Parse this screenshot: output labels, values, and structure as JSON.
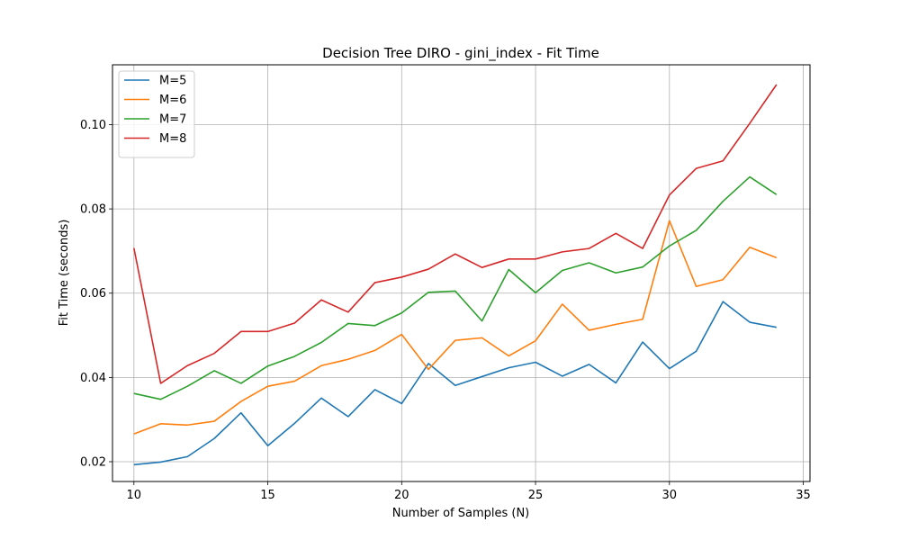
{
  "chart_data": {
    "type": "line",
    "title": "Decision Tree DIRO - gini_index - Fit Time",
    "xlabel": "Number of Samples (N)",
    "ylabel": "Fit Time (seconds)",
    "xlim": [
      9.2,
      35.25
    ],
    "ylim": [
      0.0153,
      0.1142
    ],
    "xticks": [
      10,
      15,
      20,
      25,
      30,
      35
    ],
    "yticks": [
      0.02,
      0.04,
      0.06,
      0.08,
      0.1
    ],
    "ytick_labels": [
      "0.02",
      "0.04",
      "0.06",
      "0.08",
      "0.10"
    ],
    "grid": true,
    "legend_position": "top-left",
    "x": [
      10,
      11,
      12,
      13,
      14,
      15,
      16,
      17,
      18,
      19,
      20,
      21,
      22,
      23,
      24,
      25,
      26,
      27,
      28,
      29,
      30,
      31,
      32,
      33,
      34
    ],
    "series": [
      {
        "name": "M=5",
        "color": "#1f77b4",
        "values": [
          0.0193,
          0.0199,
          0.0212,
          0.0255,
          0.0316,
          0.0238,
          0.0291,
          0.0351,
          0.0307,
          0.0371,
          0.0338,
          0.0433,
          0.0381,
          0.0402,
          0.0423,
          0.0436,
          0.0403,
          0.0431,
          0.0387,
          0.0484,
          0.0421,
          0.0462,
          0.058,
          0.0531,
          0.0519
        ]
      },
      {
        "name": "M=6",
        "color": "#ff7f0e",
        "values": [
          0.0266,
          0.029,
          0.0287,
          0.0296,
          0.0343,
          0.0379,
          0.0391,
          0.0428,
          0.0443,
          0.0464,
          0.0502,
          0.0419,
          0.0488,
          0.0494,
          0.0451,
          0.0487,
          0.0574,
          0.0512,
          0.0526,
          0.0538,
          0.0772,
          0.0616,
          0.0632,
          0.0709,
          0.0684
        ]
      },
      {
        "name": "M=7",
        "color": "#2ca02c",
        "values": [
          0.0362,
          0.0348,
          0.0379,
          0.0416,
          0.0386,
          0.0427,
          0.045,
          0.0483,
          0.0528,
          0.0523,
          0.0553,
          0.0602,
          0.0605,
          0.0534,
          0.0656,
          0.0601,
          0.0654,
          0.0672,
          0.0648,
          0.0662,
          0.0712,
          0.0749,
          0.0818,
          0.0876,
          0.0834
        ]
      },
      {
        "name": "M=8",
        "color": "#d62728",
        "values": [
          0.0707,
          0.0386,
          0.0428,
          0.0457,
          0.0509,
          0.0509,
          0.0529,
          0.0584,
          0.0555,
          0.0625,
          0.0638,
          0.0657,
          0.0693,
          0.0661,
          0.0681,
          0.0681,
          0.0698,
          0.0706,
          0.0742,
          0.0706,
          0.0833,
          0.0896,
          0.0914,
          0.1003,
          0.1095
        ]
      }
    ]
  }
}
